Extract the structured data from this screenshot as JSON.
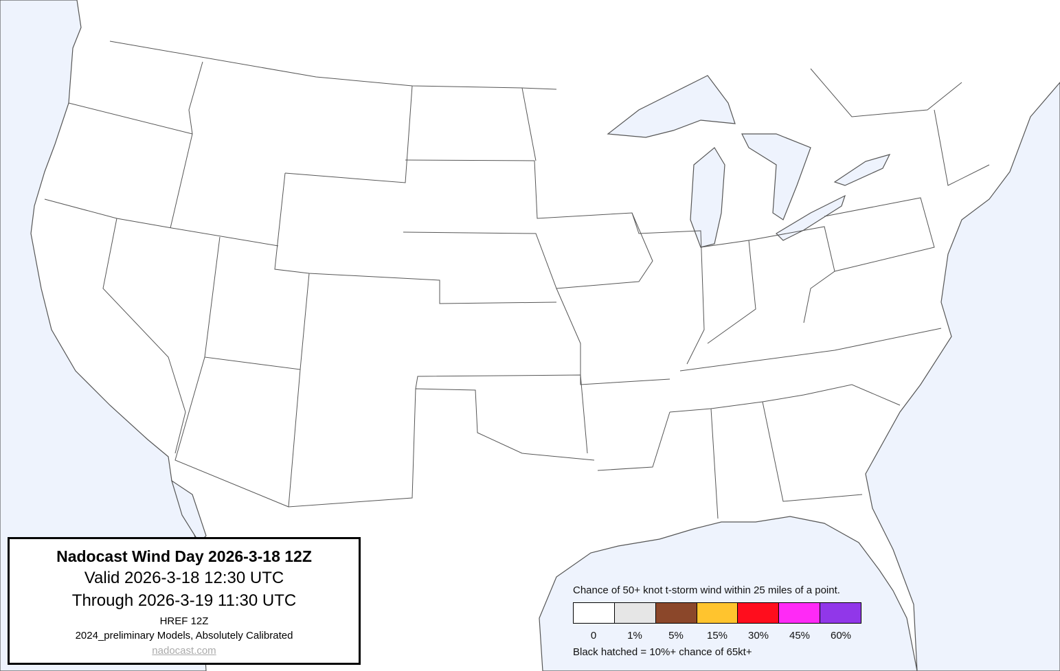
{
  "title_box": {
    "title": "Nadocast Wind Day 2026-3-18 12Z",
    "valid": "Valid 2026-3-18 12:30 UTC",
    "through": "Through 2026-3-19 11:30 UTC",
    "model": "HREF 12Z",
    "calibration": "2024_preliminary Models, Absolutely Calibrated",
    "link": "nadocast.com"
  },
  "legend": {
    "title": "Chance of 50+ knot t-storm wind within 25 miles of a point.",
    "bins": [
      {
        "label": "0",
        "color": "#ffffff"
      },
      {
        "label": "1%",
        "color": "#e6e6e6"
      },
      {
        "label": "5%",
        "color": "#8b472a"
      },
      {
        "label": "15%",
        "color": "#ffc42e"
      },
      {
        "label": "30%",
        "color": "#ff0d1d"
      },
      {
        "label": "45%",
        "color": "#ff2af6"
      },
      {
        "label": "60%",
        "color": "#9137e9"
      }
    ],
    "note": "Black hatched = 10%+ chance of 65kt+"
  },
  "colors": {
    "water": "#eef3fd",
    "land": "#ffffff",
    "borders": "#555555"
  }
}
